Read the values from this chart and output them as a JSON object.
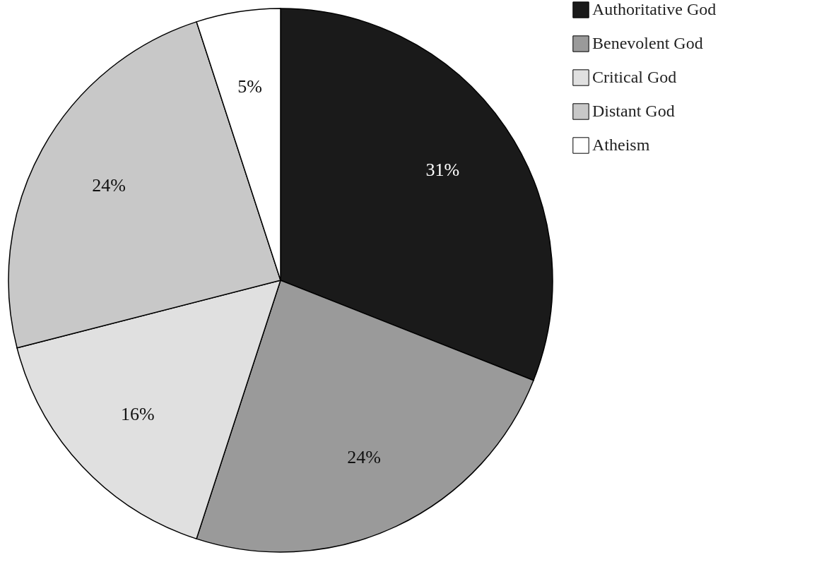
{
  "chart_data": {
    "type": "pie",
    "categories": [
      "Authoritative God",
      "Benevolent God",
      "Critical God",
      "Distant God",
      "Atheism"
    ],
    "values": [
      31,
      24,
      16,
      24,
      5
    ],
    "colors": [
      "#1a1a1a",
      "#9a9a9a",
      "#e0e0e0",
      "#c8c8c8",
      "#ffffff"
    ],
    "value_labels": [
      "31%",
      "24%",
      "16%",
      "24%",
      "5%"
    ],
    "legend": "right"
  }
}
